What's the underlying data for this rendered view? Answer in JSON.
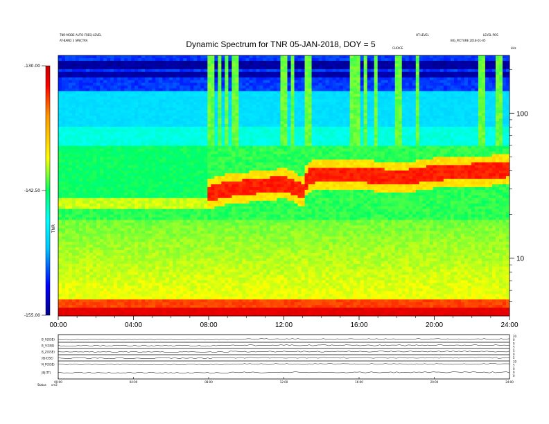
{
  "header": {
    "left_line1": "TNR-MODE AUTO-FREQ-LEVEL",
    "left_line2": "AT-BAND 3 SPECTRA",
    "center_right": "HT-LEVEL",
    "right_line1": "LEVEL POS",
    "right_line2": "BIG_PICTURE 2018-01-05",
    "small_mid": "CHOICE",
    "freq_unit": "kHz"
  },
  "chart_data": {
    "type": "heatmap",
    "title": "Dynamic Spectrum for TNR 05-JAN-2018, DOY = 5",
    "x_tick_labels": [
      "00:00",
      "04:00",
      "08:00",
      "12:00",
      "16:00",
      "20:00",
      "24:00"
    ],
    "x_tick_hours": [
      0,
      4,
      8,
      12,
      16,
      20,
      24
    ],
    "xlim_hours": [
      0,
      24
    ],
    "y_scale": "log",
    "ylim_khz": [
      4,
      250
    ],
    "y_tick_labels": [
      "10",
      "100"
    ],
    "y_tick_values": [
      10,
      100
    ],
    "colorbar": {
      "label": "TNR",
      "tick_labels": [
        "-130.00",
        "-142.50",
        "-155.00"
      ],
      "tick_values": [
        -130,
        -142.5,
        -155
      ],
      "range": [
        -155,
        -130
      ],
      "colors": [
        "#00008c",
        "#0000ff",
        "#00c8ff",
        "#00ffff",
        "#00ff64",
        "#ffff00",
        "#ff9600",
        "#ff0000",
        "#c80000"
      ]
    },
    "trace_hours": [
      8.0,
      9.0,
      10.0,
      11.0,
      12.0,
      12.6,
      13.0,
      13.3,
      14.0,
      16.0,
      17.0,
      18.0,
      19.0,
      20.0,
      22.0,
      24.0
    ],
    "trace_khz": [
      28,
      30,
      31,
      32,
      33,
      31,
      29,
      37,
      38,
      38,
      37,
      36,
      37,
      39,
      40,
      41
    ],
    "bursts_hours": [
      8.1,
      8.6,
      9.0,
      9.4,
      12.0,
      12.4,
      13.3,
      15.6,
      15.9,
      16.3,
      16.9,
      18.1,
      19.1,
      22.5,
      23.3,
      23.6
    ]
  },
  "strip_panel": {
    "row_labels": [
      "B_X(GSE)",
      "B_Y(GSE)",
      "B_Z(GSE)",
      "|B|(GSE)",
      "N_P(GSE)",
      "|B|(TT)"
    ],
    "right_labels": [
      "20",
      "0",
      "0",
      "5",
      "5",
      "0",
      "5",
      "10",
      "5",
      "0",
      "0",
      "0"
    ],
    "bottom_left": "Status",
    "bottom_left2": "cm3",
    "x_tick_labels": [
      "00:00",
      "04:00",
      "08:00",
      "12:00",
      "16:00",
      "20:00",
      "24:00"
    ]
  }
}
